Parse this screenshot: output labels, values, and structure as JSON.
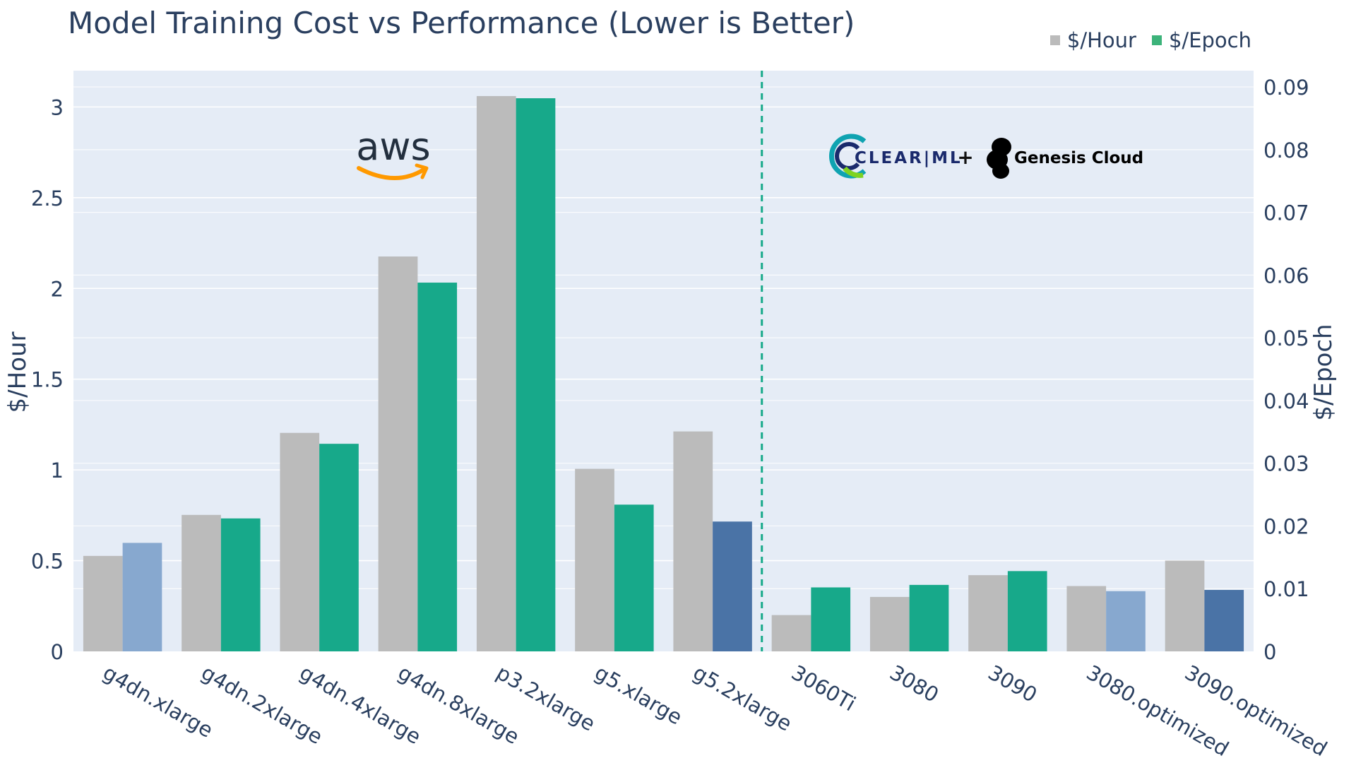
{
  "chart_data": {
    "type": "bar",
    "title": "Model Training Cost vs Performance (Lower is Better)",
    "categories": [
      "g4dn.xlarge",
      "g4dn.2xlarge",
      "g4dn.4xlarge",
      "g4dn.8xlarge",
      "p3.2xlarge",
      "g5.xlarge",
      "g5.2xlarge",
      "3060Ti",
      "3080",
      "3090",
      "3080.optimized",
      "3090.optimized"
    ],
    "series": [
      {
        "name": "$/Hour",
        "axis": "left",
        "color": "#bbbbbb",
        "values": [
          0.526,
          0.752,
          1.204,
          2.176,
          3.06,
          1.006,
          1.212,
          0.2,
          0.3,
          0.42,
          0.36,
          0.5
        ]
      },
      {
        "name": "$/Epoch",
        "axis": "right",
        "color": "#17a98a",
        "values": [
          0.0173,
          0.0212,
          0.0331,
          0.0588,
          0.0882,
          0.0234,
          0.0207,
          0.0102,
          0.0106,
          0.0128,
          0.0096,
          0.0098
        ],
        "bar_colors": [
          "#87a8cf",
          "#17a98a",
          "#17a98a",
          "#17a98a",
          "#17a98a",
          "#17a98a",
          "#4a73a6",
          "#17a98a",
          "#17a98a",
          "#17a98a",
          "#87a8cf",
          "#4a73a6"
        ]
      }
    ],
    "ylabel": "$/Hour",
    "y2label": "$/Epoch",
    "ylim": [
      0,
      3.2
    ],
    "y2lim": [
      0,
      0.0926
    ],
    "yticks": [
      0,
      0.5,
      1,
      1.5,
      2,
      2.5,
      3
    ],
    "ytick_labels": [
      "0",
      "0.5",
      "1",
      "1.5",
      "2",
      "2.5",
      "3"
    ],
    "y2ticks": [
      0,
      0.01,
      0.02,
      0.03,
      0.04,
      0.05,
      0.06,
      0.07,
      0.08,
      0.09
    ],
    "y2tick_labels": [
      "0",
      "0.01",
      "0.02",
      "0.03",
      "0.04",
      "0.05",
      "0.06",
      "0.07",
      "0.08",
      "0.09"
    ],
    "divider_after_category": "g5.2xlarge",
    "divider_color": "#17a98a",
    "legend_position": "top-right",
    "grid": true,
    "annotations": {
      "left_logo": "aws",
      "right_logo_a": "CLEAR|ML",
      "right_plus": "+",
      "right_logo_b": "Genesis Cloud"
    }
  },
  "colors": {
    "plot_bg": "#e5ecf6",
    "grid": "#ffffff",
    "text": "#2a3f5f",
    "hour_bar": "#bbbbbb",
    "epoch_bar": "#17a98a",
    "aws_orange": "#ff9900",
    "aws_text": "#232f3e",
    "clearml_navy": "#1a2a6c",
    "clearml_green": "#7ed321",
    "clearml_teal": "#0fa3b1"
  }
}
